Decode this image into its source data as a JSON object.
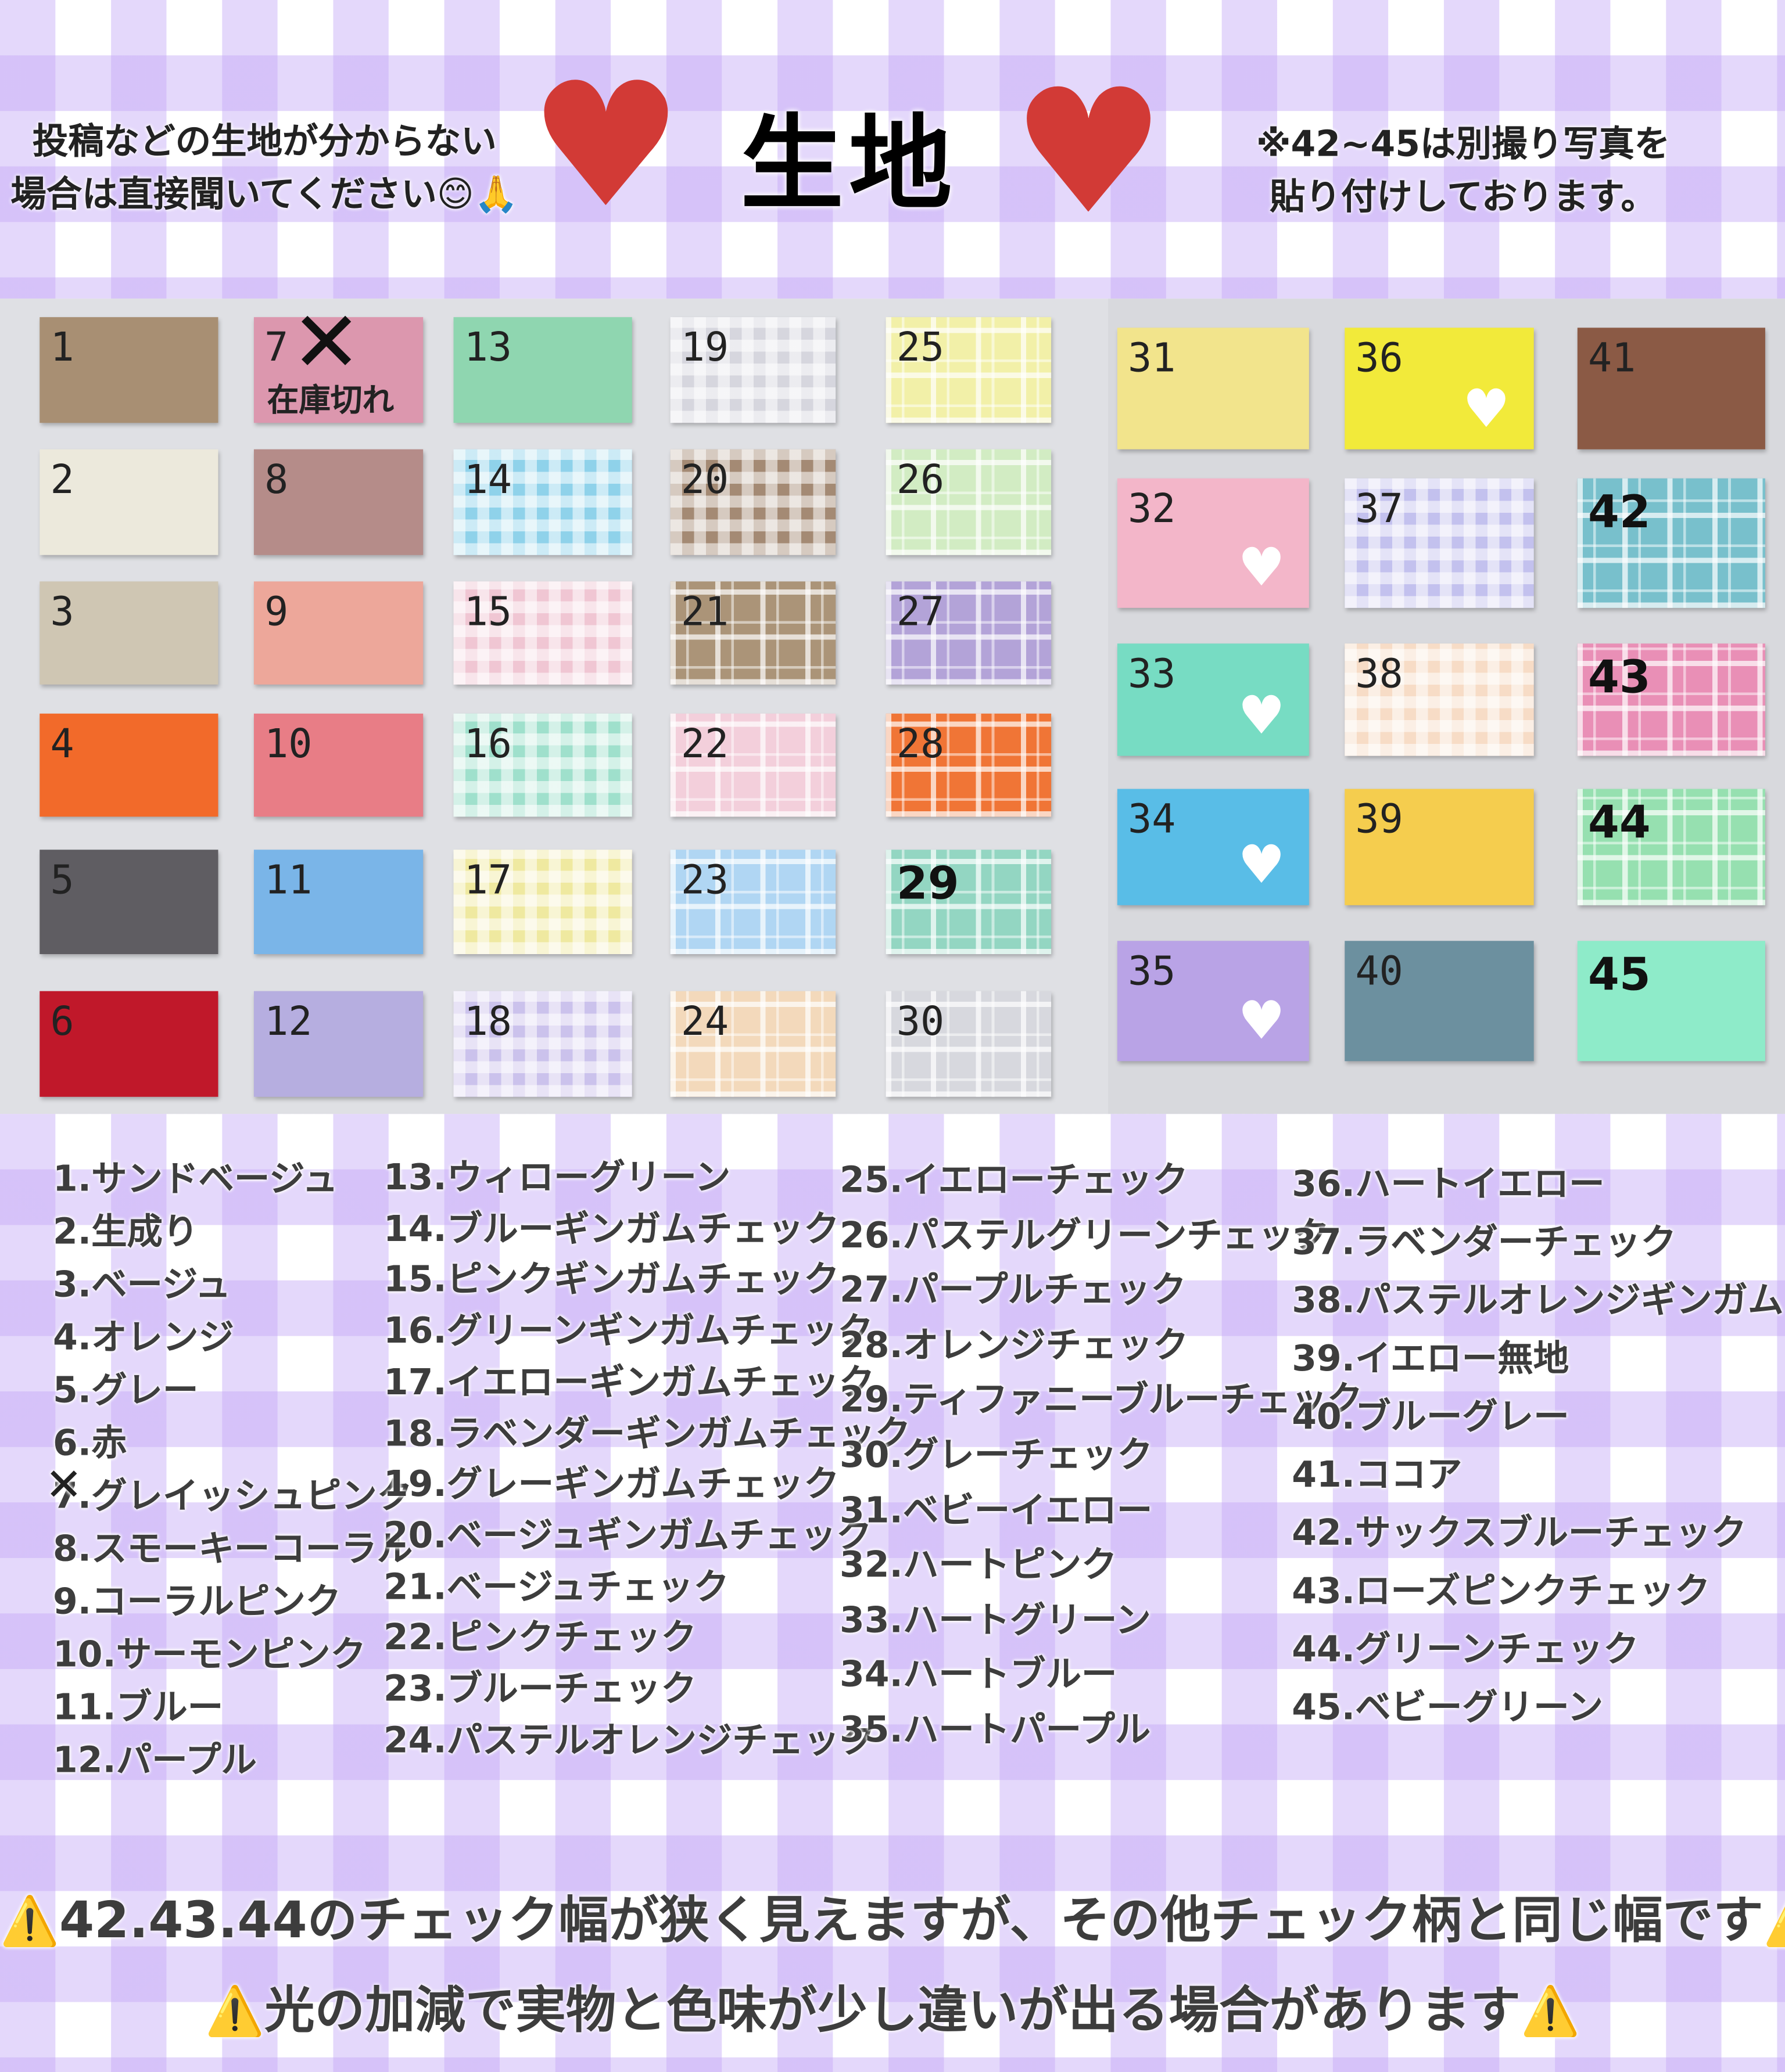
{
  "header": {
    "left_note_line1": "投稿などの生地が分からない",
    "left_note_line2": "場合は直接聞いてください😊🙏",
    "title": "生地",
    "right_note_line1": "※42~45は別撮り写真を",
    "right_note_line2": "貼り付けしております。",
    "heart_icon_color": "#d23a36"
  },
  "swatches": [
    {
      "number": "1",
      "color": "#a88f73",
      "pattern": "solid"
    },
    {
      "number": "2",
      "color": "#ece9dc",
      "pattern": "solid"
    },
    {
      "number": "3",
      "color": "#cfc6b3",
      "pattern": "solid"
    },
    {
      "number": "4",
      "color": "#f26a2a",
      "pattern": "solid"
    },
    {
      "number": "5",
      "color": "#5f5d62",
      "pattern": "solid"
    },
    {
      "number": "6",
      "color": "#c0182a",
      "pattern": "solid"
    },
    {
      "number": "7",
      "color": "#dc97ae",
      "pattern": "solid",
      "sold_out": "在庫切れ"
    },
    {
      "number": "8",
      "color": "#b58c89",
      "pattern": "solid"
    },
    {
      "number": "9",
      "color": "#eda79a",
      "pattern": "solid"
    },
    {
      "number": "10",
      "color": "#e87d86",
      "pattern": "solid"
    },
    {
      "number": "11",
      "color": "#7ab5e8",
      "pattern": "solid"
    },
    {
      "number": "12",
      "color": "#b6aee0",
      "pattern": "solid"
    },
    {
      "number": "13",
      "color": "#8fd6b0",
      "pattern": "solid"
    },
    {
      "number": "14",
      "color": "#8fd2ea",
      "pattern": "check"
    },
    {
      "number": "15",
      "color": "#f0c6d3",
      "pattern": "check"
    },
    {
      "number": "16",
      "color": "#9fe0cc",
      "pattern": "check"
    },
    {
      "number": "17",
      "color": "#efe9a0",
      "pattern": "check"
    },
    {
      "number": "18",
      "color": "#cbc2ec",
      "pattern": "check"
    },
    {
      "number": "19",
      "color": "#d6d6de",
      "pattern": "check"
    },
    {
      "number": "20",
      "color": "#a48a74",
      "pattern": "check"
    },
    {
      "number": "21",
      "color": "#ab9478",
      "pattern": "plaid"
    },
    {
      "number": "22",
      "color": "#f3cfdb",
      "pattern": "plaid"
    },
    {
      "number": "23",
      "color": "#b0d6f3",
      "pattern": "plaid"
    },
    {
      "number": "24",
      "color": "#f3d9bb",
      "pattern": "plaid"
    },
    {
      "number": "25",
      "color": "#f2f0a8",
      "pattern": "plaid"
    },
    {
      "number": "26",
      "color": "#d2ecc3",
      "pattern": "plaid"
    },
    {
      "number": "27",
      "color": "#b3a3d8",
      "pattern": "plaid"
    },
    {
      "number": "28",
      "color": "#f07536",
      "pattern": "plaid"
    },
    {
      "number": "29",
      "color": "#93d6c2",
      "pattern": "plaid"
    },
    {
      "number": "30",
      "color": "#d7d8de",
      "pattern": "plaid"
    },
    {
      "number": "31",
      "color": "#f2e48c",
      "pattern": "solid"
    },
    {
      "number": "32",
      "color": "#f3b6c9",
      "pattern": "hearts"
    },
    {
      "number": "33",
      "color": "#77dcc3",
      "pattern": "hearts"
    },
    {
      "number": "34",
      "color": "#59bde7",
      "pattern": "hearts"
    },
    {
      "number": "35",
      "color": "#b9a3e6",
      "pattern": "hearts"
    },
    {
      "number": "36",
      "color": "#f2ea3a",
      "pattern": "hearts"
    },
    {
      "number": "37",
      "color": "#c3c1ee",
      "pattern": "check"
    },
    {
      "number": "38",
      "color": "#f7dcc6",
      "pattern": "check"
    },
    {
      "number": "39",
      "color": "#f5cd4e",
      "pattern": "solid"
    },
    {
      "number": "40",
      "color": "#6c909f",
      "pattern": "solid"
    },
    {
      "number": "41",
      "color": "#8b5a45",
      "pattern": "solid"
    },
    {
      "number": "42",
      "color": "#78c0cc",
      "pattern": "plaid"
    },
    {
      "number": "43",
      "color": "#e98fb6",
      "pattern": "plaid"
    },
    {
      "number": "44",
      "color": "#96e0b0",
      "pattern": "plaid"
    },
    {
      "number": "45",
      "color": "#8eebc9",
      "pattern": "solid"
    }
  ],
  "list": [
    [
      "1.サンドベージュ",
      "2.生成り",
      "3.ベージュ",
      "4.オレンジ",
      "5.グレー",
      "6.赤",
      "7.グレイッシュピンク",
      "8.スモーキーコーラル",
      "9.コーラルピンク",
      "10.サーモンピンク",
      "11.ブルー",
      "12.パープル"
    ],
    [
      "13.ウィローグリーン",
      "14.ブルーギンガムチェック",
      "15.ピンクギンガムチェック",
      "16.グリーンギンガムチェック",
      "17.イエローギンガムチェック",
      "18.ラベンダーギンガムチェック",
      "19.グレーギンガムチェック",
      "20.ベージュギンガムチェック",
      "21.ベージュチェック",
      "22.ピンクチェック",
      "23.ブルーチェック",
      "24.パステルオレンジチェック"
    ],
    [
      "25.イエローチェック",
      "26.パステルグリーンチェック",
      "27.パープルチェック",
      "28.オレンジチェック",
      "29.ティファニーブルーチェック",
      "30.グレーチェック",
      "31.ベビーイエロー",
      "32.ハートピンク",
      "33.ハートグリーン",
      "34.ハートブルー",
      "35.ハートパープル"
    ],
    [
      "36.ハートイエロー",
      "37.ラベンダーチェック",
      "38.パステルオレンジギンガム",
      "39.イエロー無地",
      "40.ブルーグレー",
      "41.ココア",
      "42.サックスブルーチェック",
      "43.ローズピンクチェック",
      "44.グリーンチェック",
      "45.ベビーグリーン"
    ]
  ],
  "footer": {
    "warning1": "42.43.44のチェック幅が狭く見えますが、その他チェック柄と同じ幅です",
    "warning2": "光の加減で実物と色味が少し違いが出る場合があります",
    "warning_icon": "⚠️"
  }
}
